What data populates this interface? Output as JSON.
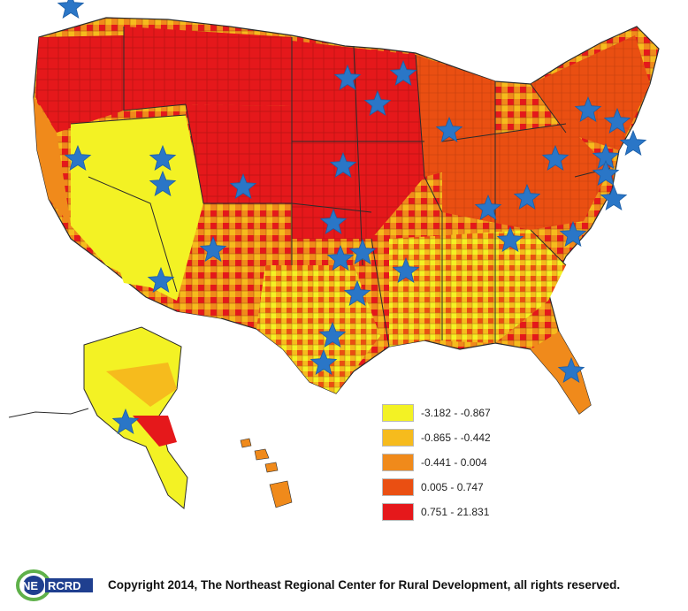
{
  "legend": {
    "items": [
      {
        "label": "-3.182 - -0.867",
        "color": "#f3f224"
      },
      {
        "label": "-0.865 - -0.442",
        "color": "#f6bb1d"
      },
      {
        "label": "-0.441 - 0.004",
        "color": "#f08a1b"
      },
      {
        "label": "0.005 - 0.747",
        "color": "#ea4f12"
      },
      {
        "label": "0.751 - 21.831",
        "color": "#e5181b"
      }
    ]
  },
  "logo": {
    "left_text": "NE",
    "right_text": "RCRD"
  },
  "footer": {
    "copyright": "Copyright 2014, The Northeast Regional Center for Rural Development, all rights reserved."
  },
  "colors": {
    "state_border": "#2b2b2b",
    "star": "#2a76c7",
    "star_stroke": "#1c5ea6",
    "logo_blue": "#1f3f8f",
    "logo_green": "#5fb14a"
  }
}
